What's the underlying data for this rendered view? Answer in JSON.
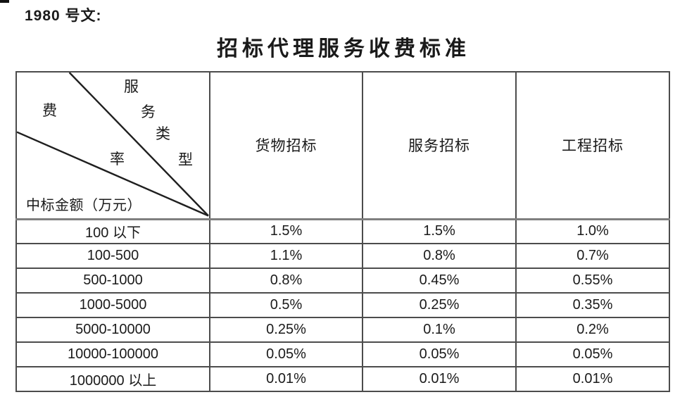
{
  "page": {
    "doc_number": "1980 号文:",
    "title": "招标代理服务收费标准"
  },
  "header_cell": {
    "type_label": "服务类型",
    "type_label_chars": [
      "服",
      "务",
      "类",
      "型"
    ],
    "rate_label": "费率",
    "rate_label_chars": [
      "费",
      "率"
    ],
    "amount_label": "中标金额（万元）"
  },
  "table": {
    "columns": [
      "货物招标",
      "服务招标",
      "工程招标"
    ],
    "rows": [
      {
        "amount": "100 以下",
        "rates": [
          "1.5%",
          "1.5%",
          "1.0%"
        ]
      },
      {
        "amount": "100-500",
        "rates": [
          "1.1%",
          "0.8%",
          "0.7%"
        ]
      },
      {
        "amount": "500-1000",
        "rates": [
          "0.8%",
          "0.45%",
          "0.55%"
        ]
      },
      {
        "amount": "1000-5000",
        "rates": [
          "0.5%",
          "0.25%",
          "0.35%"
        ]
      },
      {
        "amount": "5000-10000",
        "rates": [
          "0.25%",
          "0.1%",
          "0.2%"
        ]
      },
      {
        "amount": "10000-100000",
        "rates": [
          "0.05%",
          "0.05%",
          "0.05%"
        ]
      },
      {
        "amount": "1000000 以上",
        "rates": [
          "0.01%",
          "0.01%",
          "0.01%"
        ]
      }
    ]
  },
  "colors": {
    "background": "#ffffff",
    "text": "#1a1a1a",
    "grid_border": "#4c4c4c",
    "header_separator": "#7f7f7f",
    "diagonal_line": "#1f1f1f"
  }
}
